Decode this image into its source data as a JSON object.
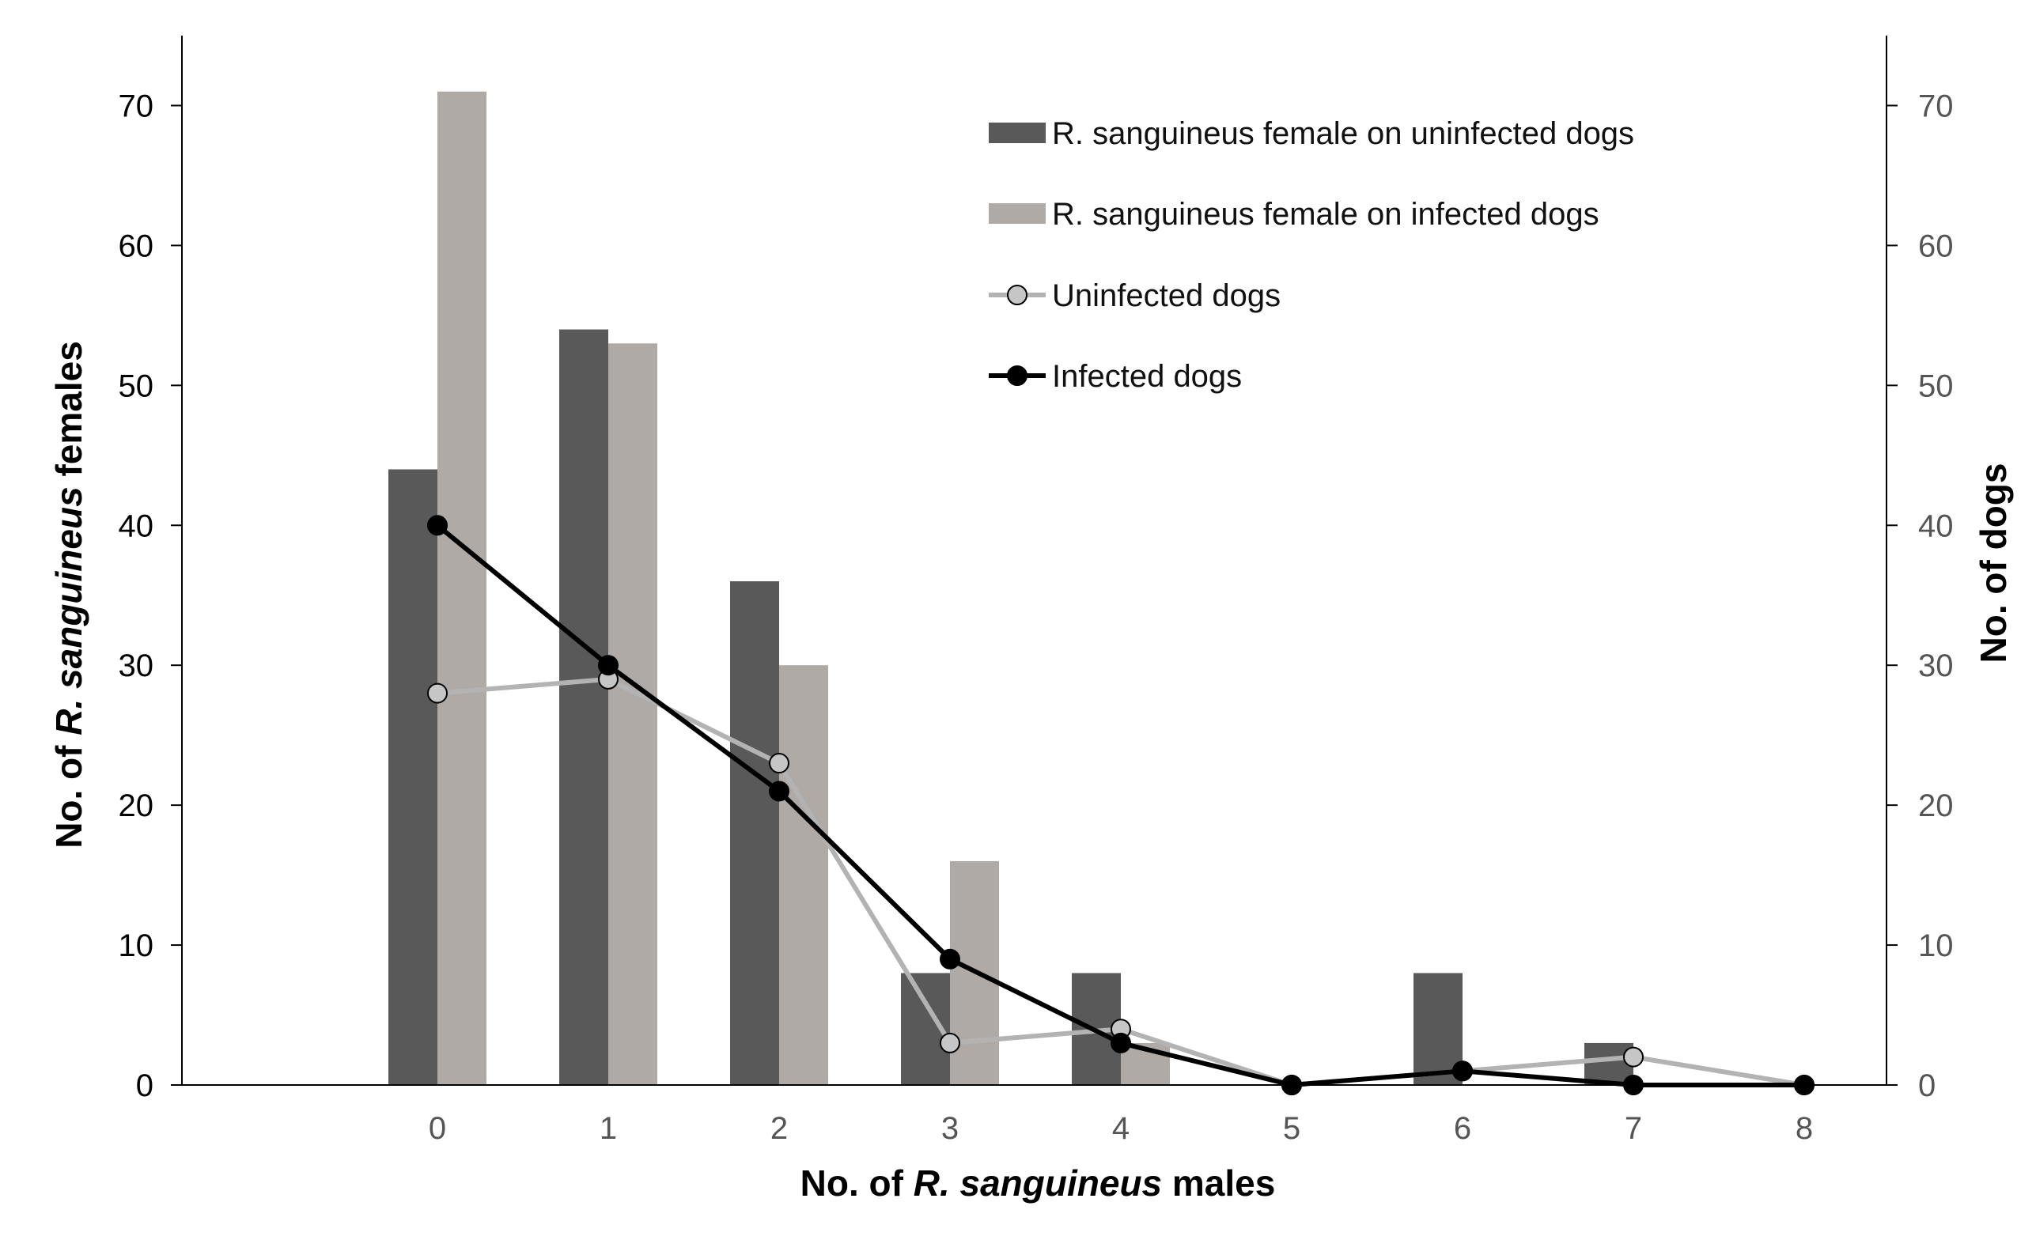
{
  "chart_data": {
    "type": "bar+line",
    "categories": [
      "0",
      "1",
      "2",
      "3",
      "4",
      "5",
      "6",
      "7",
      "8"
    ],
    "bar_series": [
      {
        "name": "R. sanguineus female on uninfected dogs",
        "color": "#595959",
        "values": [
          44,
          54,
          36,
          8,
          8,
          0,
          8,
          3,
          0
        ]
      },
      {
        "name": "R. sanguineus female on infected dogs",
        "color": "#b0aaa7",
        "values": [
          71,
          53,
          30,
          16,
          3,
          0,
          0,
          0,
          0
        ]
      }
    ],
    "line_series": [
      {
        "name": "Uninfected dogs",
        "line_color": "#b3b3b3",
        "marker_color": "#c6c6c6",
        "values": [
          28,
          29,
          23,
          3,
          4,
          0,
          1,
          2,
          0
        ]
      },
      {
        "name": "Infected dogs",
        "line_color": "#000000",
        "marker_color": "#000000",
        "values": [
          40,
          30,
          21,
          9,
          3,
          0,
          1,
          0,
          0
        ]
      }
    ],
    "xlabel": {
      "prefix": "No. of ",
      "italic": "R. sanguineus",
      "suffix": " males"
    },
    "ylabel_left": {
      "prefix": "No. of ",
      "italic": "R. sanguineus",
      "suffix": " females"
    },
    "ylabel_right": "No. of dogs",
    "ylim_left": [
      0,
      75
    ],
    "ylim_right": [
      0,
      75
    ],
    "yticks": [
      0,
      10,
      20,
      30,
      40,
      50,
      60,
      70
    ],
    "legend_position": "top-right",
    "grid": false
  }
}
